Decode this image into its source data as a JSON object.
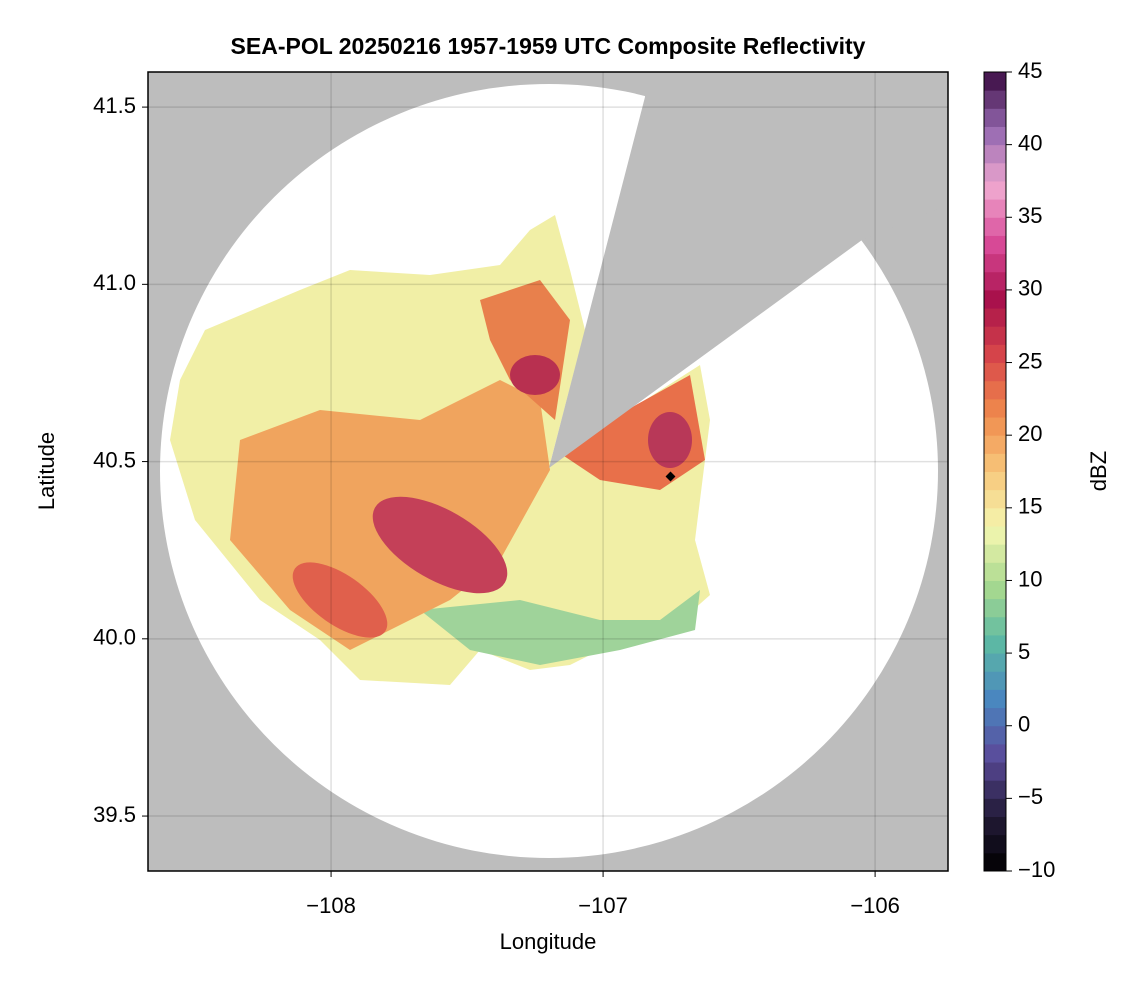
{
  "chart_data": {
    "type": "map",
    "title": "SEA-POL 20250216 1957-1959 UTC Composite Reflectivity",
    "x_label": "Longitude",
    "y_label": "Latitude",
    "xlim": [
      -108.673,
      -105.732
    ],
    "xticks": [
      {
        "value": -108,
        "label": "−108"
      },
      {
        "value": -107,
        "label": "−107"
      },
      {
        "value": -106,
        "label": "−106"
      }
    ],
    "ylim": [
      39.345,
      41.599
    ],
    "yticks": [
      {
        "value": 39.5,
        "label": "39.5"
      },
      {
        "value": 40.0,
        "label": "40.0"
      },
      {
        "value": 40.5,
        "label": "40.5"
      },
      {
        "value": 41.0,
        "label": "41.0"
      },
      {
        "value": 41.5,
        "label": "41.5"
      }
    ],
    "grid": true,
    "colorbar": {
      "label": "dBZ",
      "lim": [
        -10,
        45
      ],
      "ticks": [
        {
          "value": -10,
          "label": "−10"
        },
        {
          "value": -5,
          "label": "−5"
        },
        0,
        5,
        10,
        15,
        20,
        25,
        30,
        35,
        40,
        45
      ],
      "colormap": [
        "#000000",
        "#241c3a",
        "#5a4b9a",
        "#4a86c0",
        "#5cb8a4",
        "#a8d98e",
        "#f4f6b0",
        "#f7c87c",
        "#f08a4c",
        "#d8484a",
        "#a8104a",
        "#d84a98",
        "#f0a8d0",
        "#9468b0",
        "#3a0a40"
      ]
    }
  }
}
